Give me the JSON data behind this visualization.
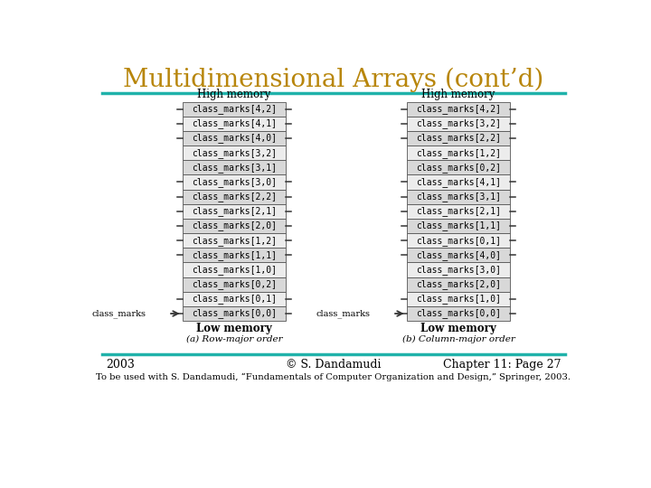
{
  "title": "Multidimensional Arrays (cont’d)",
  "title_color": "#B8860B",
  "title_fontsize": 20,
  "teal_line_color": "#20B2AA",
  "bg_color": "#FFFFFF",
  "footer_year": "2003",
  "footer_center": "© S. Dandamudi",
  "footer_right": "Chapter 11: Page 27",
  "footer_bottom": "To be used with S. Dandamudi, “Fundamentals of Computer Organization and Design,” Springer, 2003.",
  "left_top_label": "High memory",
  "left_bot_label": "Low memory",
  "left_caption": "(a) Row-major order",
  "left_pointer_label": "class_marks",
  "left_rows": [
    "class_marks[4,2]",
    "class_marks[4,1]",
    "class_marks[4,0]",
    "class_marks[3,2]",
    "class_marks[3,1]",
    "class_marks[3,0]",
    "class_marks[2,2]",
    "class_marks[2,1]",
    "class_marks[2,0]",
    "class_marks[1,2]",
    "class_marks[1,1]",
    "class_marks[1,0]",
    "class_marks[0,2]",
    "class_marks[0,1]",
    "class_marks[0,0]"
  ],
  "left_dashes": [
    0,
    1,
    2,
    5,
    6,
    7,
    8,
    9,
    10,
    13,
    14
  ],
  "right_top_label": "High memory",
  "right_bot_label": "Low memory",
  "right_caption": "(b) Column-major order",
  "right_pointer_label": "class_marks",
  "right_rows": [
    "class_marks[4,2]",
    "class_marks[3,2]",
    "class_marks[2,2]",
    "class_marks[1,2]",
    "class_marks[0,2]",
    "class_marks[4,1]",
    "class_marks[3,1]",
    "class_marks[2,1]",
    "class_marks[1,1]",
    "class_marks[0,1]",
    "class_marks[4,0]",
    "class_marks[3,0]",
    "class_marks[2,0]",
    "class_marks[1,0]",
    "class_marks[0,0]"
  ],
  "right_dashes": [
    0,
    1,
    2,
    5,
    6,
    7,
    8,
    9,
    10,
    13,
    14
  ],
  "box_border": "#555555",
  "text_color": "#000000",
  "mono_fontsize": 7.0,
  "label_fontsize": 8.5
}
